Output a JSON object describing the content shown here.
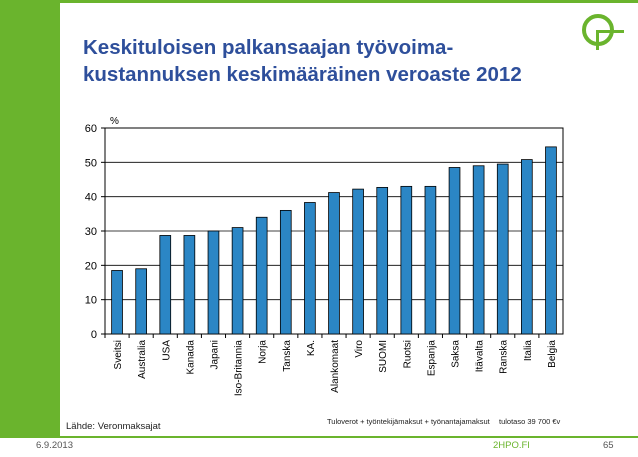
{
  "slide": {
    "title_line1": "Keskituloisen palkansaajan työvoima-",
    "title_line2": "kustannuksen keskimääräinen veroaste 2012",
    "source": "Lähde: Veronmaksajat",
    "note_formula": "Tuloverot + työntekijämaksut + työnantajamaksut",
    "note_income": "tulotaso 39 700 €v",
    "date": "6.9.2013",
    "site": "2HPO.FI",
    "page_number": "65",
    "accent_color": "#6ab42d",
    "title_color": "#2e4f9b",
    "logo_icon": "circle-logo-icon"
  },
  "chart_data": {
    "type": "bar",
    "title": "",
    "ylabel": "%",
    "xlabel": "",
    "ylim": [
      0,
      60
    ],
    "yticks": [
      0,
      10,
      20,
      30,
      40,
      50,
      60
    ],
    "grid": true,
    "legend": "none",
    "bar_color": "#2b86c5",
    "categories": [
      "Sveitsi",
      "Australia",
      "USA",
      "Kanada",
      "Japani",
      "Iso-Britannia",
      "Norja",
      "Tanska",
      "KA.",
      "Alankomaat",
      "Viro",
      "SUOMI",
      "Ruotsi",
      "Espanja",
      "Saksa",
      "Itävalta",
      "Ranska",
      "Italia",
      "Belgia"
    ],
    "values": [
      18.5,
      19,
      28.7,
      28.7,
      30,
      31,
      34,
      36,
      38.3,
      41.2,
      42.2,
      42.7,
      43,
      43,
      48.5,
      49,
      49.5,
      50.8,
      54.5
    ]
  }
}
